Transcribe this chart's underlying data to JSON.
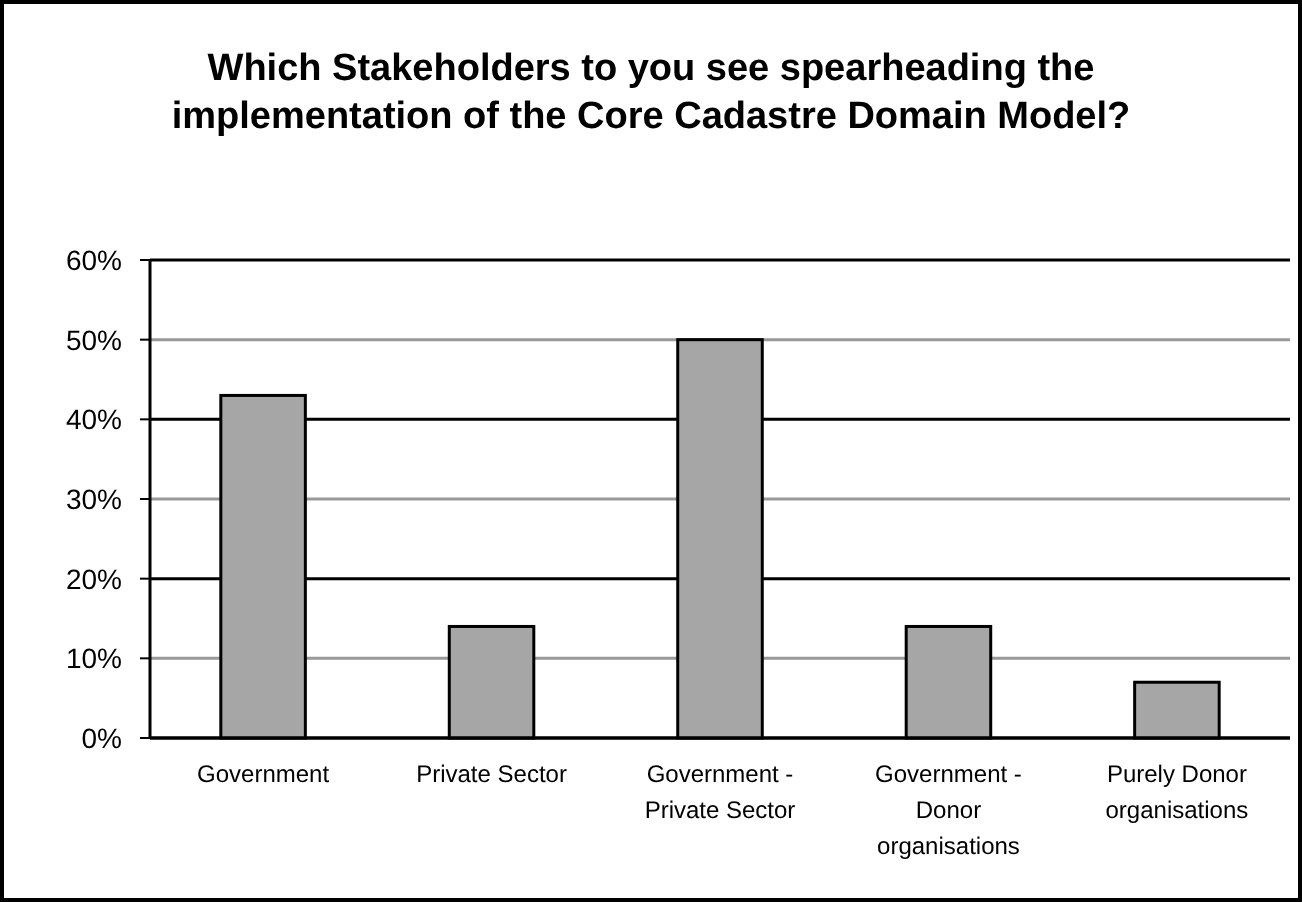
{
  "chart_data": {
    "type": "bar",
    "title": "Which Stakeholders to you see spearheading the implementation of the Core Cadastre Domain Model?",
    "categories": [
      "Government",
      "Private Sector",
      "Government - Private Sector",
      "Government - Donor organisations",
      "Purely Donor organisations"
    ],
    "values": [
      43,
      14,
      50,
      14,
      7
    ],
    "color": "#a6a6a6",
    "ylim": [
      0,
      60
    ],
    "yticks": [
      {
        "value": 0,
        "label": "0%"
      },
      {
        "value": 10,
        "label": "10%"
      },
      {
        "value": 20,
        "label": "20%"
      },
      {
        "value": 30,
        "label": "30%"
      },
      {
        "value": 40,
        "label": "40%"
      },
      {
        "value": 50,
        "label": "50%"
      },
      {
        "value": 60,
        "label": "60%"
      }
    ],
    "grid": "y"
  }
}
